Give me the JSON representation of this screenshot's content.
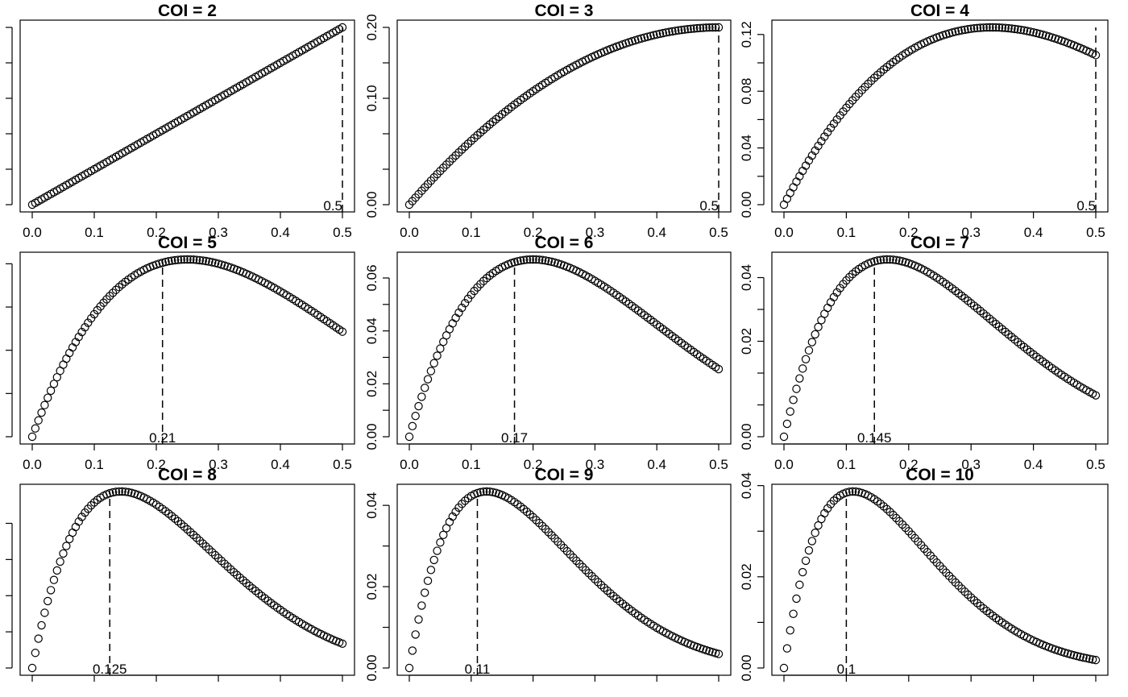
{
  "chart_data": [
    {
      "type": "scatter",
      "title": "COI =  2",
      "coi": 2,
      "xlim": [
        0,
        0.5
      ],
      "ylim": [
        0,
        0.25
      ],
      "x_ticks": [
        "0.0",
        "0.1",
        "0.2",
        "0.3",
        "0.4",
        "0.5"
      ],
      "y_ticks": [],
      "y_tick_values": [
        0,
        0.05,
        0.1,
        0.15,
        0.2,
        0.25
      ],
      "optimum_label": "0.5",
      "optimum_x": 0.5
    },
    {
      "type": "scatter",
      "title": "COI =  3",
      "coi": 3,
      "xlim": [
        0,
        0.5
      ],
      "ylim": [
        0,
        0.25
      ],
      "x_ticks": [
        "0.0",
        "0.1",
        "0.2",
        "0.3",
        "0.4",
        "0.5"
      ],
      "y_ticks": [
        "0.00",
        "0.10",
        "0.20"
      ],
      "y_tick_values": [
        0,
        0.05,
        0.1,
        0.15,
        0.2,
        0.25
      ],
      "optimum_label": "0.5",
      "optimum_x": 0.5
    },
    {
      "type": "scatter",
      "title": "COI =  4",
      "coi": 4,
      "xlim": [
        0,
        0.5
      ],
      "ylim": [
        0,
        0.125
      ],
      "x_ticks": [
        "0.0",
        "0.1",
        "0.2",
        "0.3",
        "0.4",
        "0.5"
      ],
      "y_ticks": [
        "0.00",
        "0.04",
        "0.08",
        "0.12"
      ],
      "y_tick_values": [
        0,
        0.02,
        0.04,
        0.06,
        0.08,
        0.1,
        0.12
      ],
      "optimum_label": "0.5",
      "optimum_x": 0.5
    },
    {
      "type": "scatter",
      "title": "COI =  5",
      "coi": 5,
      "xlim": [
        0,
        0.5
      ],
      "ylim": [
        0,
        0.082
      ],
      "x_ticks": [
        "0.0",
        "0.1",
        "0.2",
        "0.3",
        "0.4",
        "0.5"
      ],
      "y_ticks": [],
      "y_tick_values": [
        0,
        0.02,
        0.04,
        0.06,
        0.08
      ],
      "optimum_label": "0.21",
      "optimum_x": 0.21
    },
    {
      "type": "scatter",
      "title": "COI =  6",
      "coi": 6,
      "xlim": [
        0,
        0.5
      ],
      "ylim": [
        0,
        0.067
      ],
      "x_ticks": [
        "0.0",
        "0.1",
        "0.2",
        "0.3",
        "0.4",
        "0.5"
      ],
      "y_ticks": [
        "0.00",
        "0.02",
        "0.04",
        "0.06"
      ],
      "y_tick_values": [
        0,
        0.01,
        0.02,
        0.03,
        0.04,
        0.05,
        0.06
      ],
      "optimum_label": "0.17",
      "optimum_x": 0.17
    },
    {
      "type": "scatter",
      "title": "COI =  7",
      "coi": 7,
      "xlim": [
        0,
        0.5
      ],
      "ylim": [
        0,
        0.0557
      ],
      "x_ticks": [
        "0.0",
        "0.1",
        "0.2",
        "0.3",
        "0.4",
        "0.5"
      ],
      "y_ticks": [
        "0.00",
        "0.02",
        "0.04"
      ],
      "y_tick_values": [
        0,
        0.01,
        0.02,
        0.03,
        0.04,
        0.05
      ],
      "optimum_label": "0.145",
      "optimum_x": 0.145
    },
    {
      "type": "scatter",
      "title": "COI =  8",
      "coi": 8,
      "xlim": [
        0,
        0.5
      ],
      "ylim": [
        0,
        0.0488
      ],
      "x_ticks": [],
      "y_ticks": [],
      "y_tick_values": [
        0,
        0.01,
        0.02,
        0.03,
        0.04
      ],
      "optimum_label": "0.125",
      "optimum_x": 0.125
    },
    {
      "type": "scatter",
      "title": "COI =  9",
      "coi": 9,
      "xlim": [
        0,
        0.5
      ],
      "ylim": [
        0,
        0.0434
      ],
      "x_ticks": [],
      "y_ticks": [
        "0.00",
        "0.02",
        "0.04"
      ],
      "y_tick_values": [
        0,
        0.01,
        0.02,
        0.03,
        0.04
      ],
      "optimum_label": "0.11",
      "optimum_x": 0.11
    },
    {
      "type": "scatter",
      "title": "COI =  10",
      "coi": 10,
      "xlim": [
        0,
        0.5
      ],
      "ylim": [
        0,
        0.0387
      ],
      "x_ticks": [],
      "y_ticks": [
        "0.00",
        "0.02",
        "0.04"
      ],
      "y_tick_values": [
        0,
        0.01,
        0.02,
        0.03,
        0.04
      ],
      "optimum_label": "0.1",
      "optimum_x": 0.1
    }
  ]
}
